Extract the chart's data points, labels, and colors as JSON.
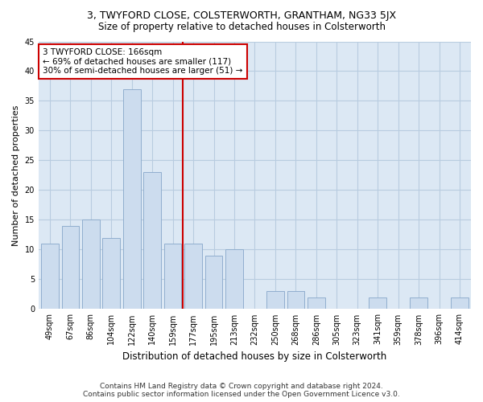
{
  "title": "3, TWYFORD CLOSE, COLSTERWORTH, GRANTHAM, NG33 5JX",
  "subtitle": "Size of property relative to detached houses in Colsterworth",
  "xlabel": "Distribution of detached houses by size in Colsterworth",
  "ylabel": "Number of detached properties",
  "footer_line1": "Contains HM Land Registry data © Crown copyright and database right 2024.",
  "footer_line2": "Contains public sector information licensed under the Open Government Licence v3.0.",
  "categories": [
    "49sqm",
    "67sqm",
    "86sqm",
    "104sqm",
    "122sqm",
    "140sqm",
    "159sqm",
    "177sqm",
    "195sqm",
    "213sqm",
    "232sqm",
    "250sqm",
    "268sqm",
    "286sqm",
    "305sqm",
    "323sqm",
    "341sqm",
    "359sqm",
    "378sqm",
    "396sqm",
    "414sqm"
  ],
  "values": [
    11,
    14,
    15,
    12,
    37,
    23,
    11,
    11,
    9,
    10,
    0,
    3,
    3,
    2,
    0,
    0,
    2,
    0,
    2,
    0,
    2
  ],
  "bar_color": "#ccdcee",
  "bar_edge_color": "#90aece",
  "grid_color": "#b8cce0",
  "background_color": "#dce8f4",
  "vline_color": "#cc0000",
  "vline_x": 6.5,
  "annotation_text": "3 TWYFORD CLOSE: 166sqm\n← 69% of detached houses are smaller (117)\n30% of semi-detached houses are larger (51) →",
  "annotation_box_facecolor": "#ffffff",
  "annotation_box_edgecolor": "#cc0000",
  "ylim": [
    0,
    45
  ],
  "yticks": [
    0,
    5,
    10,
    15,
    20,
    25,
    30,
    35,
    40,
    45
  ],
  "title_fontsize": 9,
  "subtitle_fontsize": 8.5,
  "ylabel_fontsize": 8,
  "xlabel_fontsize": 8.5,
  "tick_fontsize": 7,
  "annotation_fontsize": 7.5,
  "footer_fontsize": 6.5
}
